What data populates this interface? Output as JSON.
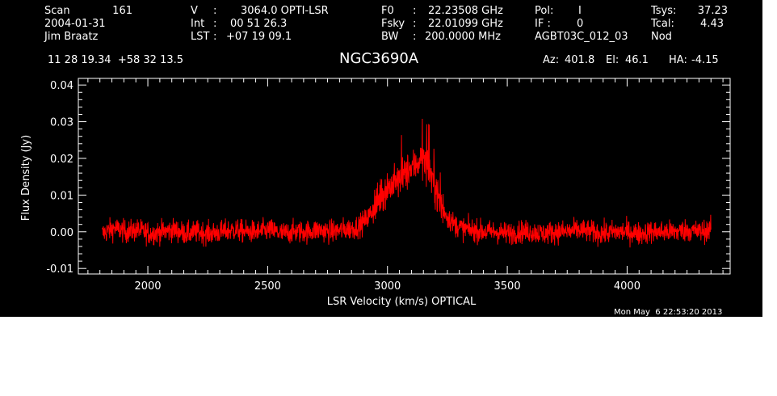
{
  "header": {
    "col1": {
      "scan_label": "Scan",
      "scan_value": "161",
      "date": "2004-01-31",
      "observer": "Jim Braatz"
    },
    "col2": {
      "v_label": "V",
      "v_sep": ":",
      "v_value": "3064.0 OPTI-LSR",
      "int_label": "Int",
      "int_sep": ":",
      "int_value": "00 51 26.3",
      "lst_label": "LST",
      "lst_sep": ":",
      "lst_value": "+07 19 09.1"
    },
    "col3": {
      "f0_label": "F0",
      "f0_sep": ":",
      "f0_value": "22.23508 GHz",
      "fsky_label": "Fsky",
      "fsky_sep": ":",
      "fsky_value": "22.01099 GHz",
      "bw_label": "BW",
      "bw_sep": ":",
      "bw_value": "200.0000 MHz"
    },
    "col4": {
      "pol_label": "Pol:",
      "pol_value": "I",
      "if_label": "IF :",
      "if_value": "0",
      "project": "AGBT03C_012_03"
    },
    "col5": {
      "tsys_label": "Tsys:",
      "tsys_value": "37.23",
      "tcal_label": "Tcal:",
      "tcal_value": "4.43",
      "mode": "Nod"
    },
    "coords": "11 28 19.34  +58 32 13.5",
    "source": "NGC3690A",
    "az_label": "Az:",
    "az_value": "401.8",
    "el_label": "El:",
    "el_value": "46.1",
    "ha_label": "HA:",
    "ha_value": "-4.15"
  },
  "timestamp": "Mon May  6 22:53:20 2013",
  "colors": {
    "background": "#000000",
    "axes": "#ffffff",
    "spectrum": "#ff0000"
  },
  "chart_data": {
    "type": "line",
    "title": "NGC3690A",
    "xlabel": "LSR Velocity (km/s) OPTICAL",
    "ylabel": "Flux Density (Jy)",
    "xlim": [
      1710,
      4430
    ],
    "ylim": [
      -0.0115,
      0.0418
    ],
    "xticks": [
      2000,
      2500,
      3000,
      3500,
      4000
    ],
    "xtick_labels": [
      "2000",
      "2500",
      "3000",
      "3500",
      "4000"
    ],
    "yticks": [
      -0.01,
      0.0,
      0.01,
      0.02,
      0.03,
      0.04
    ],
    "ytick_labels": [
      "-0.01",
      "0.00",
      "0.01",
      "0.02",
      "0.03",
      "0.04"
    ],
    "grid": false,
    "series": [
      {
        "color": "#ff0000",
        "x": [
          1810,
          1860,
          1910,
          1960,
          2010,
          2060,
          2110,
          2160,
          2210,
          2260,
          2310,
          2360,
          2410,
          2460,
          2510,
          2560,
          2610,
          2660,
          2710,
          2760,
          2810,
          2860,
          2890,
          2920,
          2950,
          2975,
          3000,
          3025,
          3050,
          3075,
          3100,
          3125,
          3150,
          3165,
          3180,
          3200,
          3220,
          3250,
          3280,
          3310,
          3350,
          3400,
          3450,
          3500,
          3550,
          3600,
          3650,
          3700,
          3750,
          3800,
          3850,
          3900,
          3950,
          4000,
          4050,
          4100,
          4150,
          4200,
          4250,
          4300,
          4350
        ],
        "y": [
          -0.0005,
          0.001,
          0.0,
          0.0005,
          -0.0005,
          0.0,
          0.0005,
          -0.0005,
          0.0,
          -0.0005,
          0.0,
          0.0005,
          0.0,
          0.0,
          0.0005,
          -0.0005,
          0.0,
          0.0,
          0.0005,
          0.0,
          0.0005,
          0.001,
          0.002,
          0.004,
          0.007,
          0.01,
          0.012,
          0.013,
          0.014,
          0.016,
          0.017,
          0.019,
          0.02,
          0.018,
          0.016,
          0.012,
          0.008,
          0.004,
          0.002,
          0.001,
          0.0005,
          0.0,
          0.0,
          -0.0005,
          0.0,
          0.0,
          -0.0005,
          0.0,
          0.0,
          0.0005,
          0.0,
          -0.0005,
          0.0,
          0.0,
          -0.0005,
          0.0,
          0.0,
          0.0,
          0.0005,
          0.0,
          0.0005
        ]
      }
    ]
  }
}
